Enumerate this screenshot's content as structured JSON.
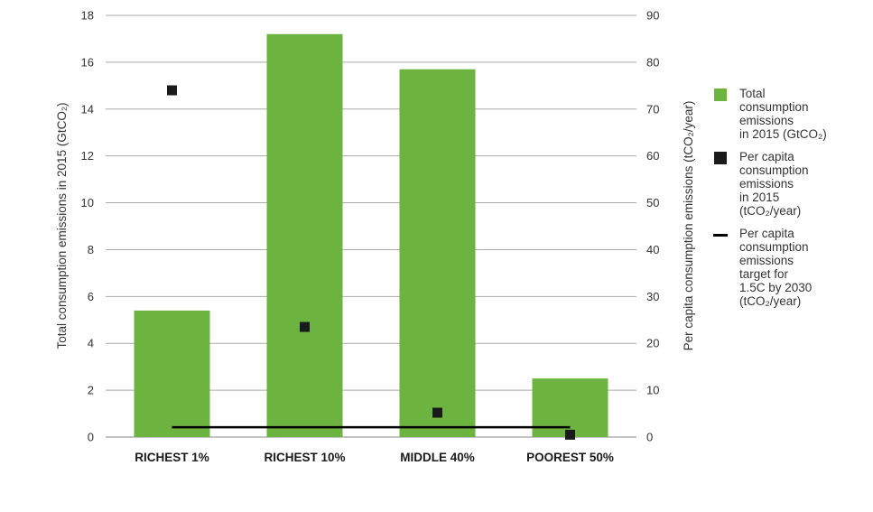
{
  "chart_data": {
    "type": "bar",
    "categories": [
      "RICHEST 1%",
      "RICHEST 10%",
      "MIDDLE 40%",
      "POOREST 50%"
    ],
    "series": [
      {
        "name": "Total consumption emissions in 2015 (GtCO₂)",
        "kind": "bar",
        "axis": "left",
        "color": "#6db33f",
        "values": [
          5.4,
          17.2,
          15.7,
          2.5
        ]
      },
      {
        "name": "Per capita consumption emissions in 2015 (tCO₂/year)",
        "kind": "marker",
        "axis": "right",
        "color": "#1a1a1a",
        "values": [
          74,
          23.5,
          5.2,
          0.5
        ]
      },
      {
        "name": "Per capita consumption emissions target for 1.5C by 2030 (tCO₂/year)",
        "kind": "line",
        "axis": "right",
        "color": "#000000",
        "values": [
          2.1,
          2.1,
          2.1,
          2.1
        ]
      }
    ],
    "ylabel_left": "Total consumption emissions in 2015 (GtCO₂)",
    "ylabel_right": "Per capita consumption emissions  (tCO₂/year)",
    "ylim_left": [
      0,
      18
    ],
    "ylim_right": [
      0,
      90
    ],
    "yticks_left": [
      "0",
      "2",
      "4",
      "6",
      "8",
      "10",
      "12",
      "14",
      "16",
      "18"
    ],
    "yticks_right": [
      "0",
      "10",
      "20",
      "30",
      "40",
      "50",
      "60",
      "70",
      "80",
      "90"
    ],
    "grid": "horizontal",
    "legend_position": "right"
  },
  "legend": [
    {
      "text": "Total\nconsumption\nemissions\nin 2015 (GtCO₂)",
      "shape": "square",
      "color": "#6db33f"
    },
    {
      "text": "Per capita\nconsumption\nemissions\nin 2015\n(tCO₂/year)",
      "shape": "square",
      "color": "#1a1a1a"
    },
    {
      "text": "Per capita\nconsumption\nemissions\ntarget for\n1.5C by 2030\n(tCO₂/year)",
      "shape": "line",
      "color": "#000000"
    }
  ]
}
